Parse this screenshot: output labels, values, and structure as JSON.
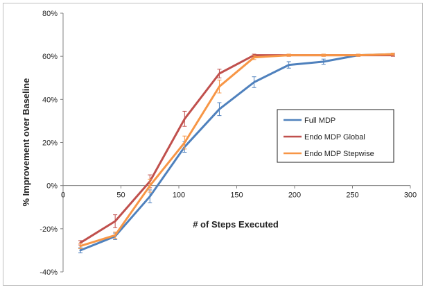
{
  "chart_data": {
    "type": "line",
    "title": "",
    "xlabel": "# of Steps Executed",
    "ylabel": "% Improvement over Baseline",
    "xlim": [
      0,
      300
    ],
    "ylim": [
      -40,
      80
    ],
    "x_ticks": [
      0,
      50,
      100,
      150,
      200,
      250,
      300
    ],
    "y_ticks": [
      -40,
      -20,
      0,
      20,
      40,
      60,
      80
    ],
    "y_tick_labels": [
      "-40%",
      "-20%",
      "0%",
      "20%",
      "40%",
      "60%",
      "80%"
    ],
    "grid": false,
    "error_bars": true,
    "legend_position": "right",
    "series": [
      {
        "name": "Full MDP",
        "color": "#4f81bd",
        "x": [
          15,
          45,
          75,
          105,
          135,
          165,
          195,
          225,
          255,
          285
        ],
        "y": [
          -30,
          -23.5,
          -5,
          18,
          35.5,
          48,
          56,
          57.5,
          60.5,
          61
        ],
        "err": [
          1.2,
          1.5,
          3,
          2.5,
          3,
          2.5,
          1.5,
          1.2,
          0.5,
          0.5
        ]
      },
      {
        "name": "Endo MDP Global",
        "color": "#c0504d",
        "x": [
          15,
          45,
          75,
          105,
          135,
          165,
          195,
          225,
          255,
          285
        ],
        "y": [
          -26.5,
          -16.5,
          2,
          31,
          52,
          60.5,
          60.5,
          60.5,
          60.5,
          60.5
        ],
        "err": [
          1,
          3,
          3,
          3.5,
          2,
          0.5,
          0.5,
          0.5,
          0.5,
          0.5
        ]
      },
      {
        "name": "Endo MDP Stepwise",
        "color": "#f79646",
        "x": [
          15,
          45,
          75,
          105,
          135,
          165,
          195,
          225,
          255,
          285
        ],
        "y": [
          -28,
          -23,
          0,
          20,
          46,
          59.5,
          60.5,
          60.5,
          60.5,
          61
        ],
        "err": [
          1.2,
          1.5,
          3,
          3,
          3,
          1,
          0.5,
          0.5,
          0.5,
          0.5
        ]
      }
    ]
  }
}
